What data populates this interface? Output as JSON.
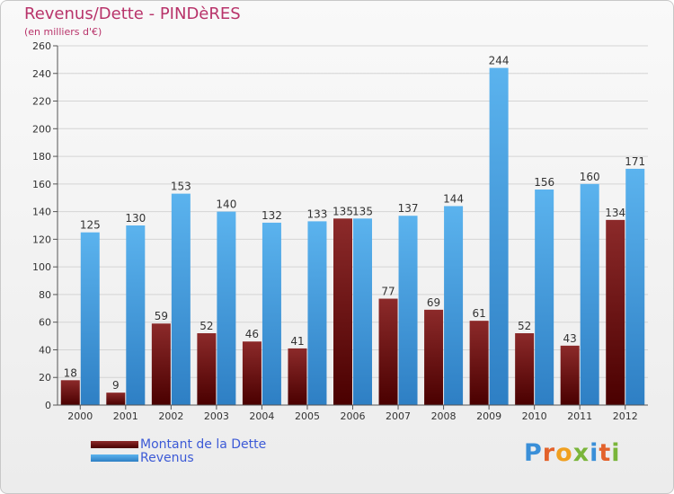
{
  "header": {
    "title": "Revenus/Dette - PINDèRES",
    "subtitle": "(en milliers d'€)"
  },
  "legend": {
    "debt_label": "Montant de la Dette",
    "revenue_label": "Revenus"
  },
  "logo": {
    "text": "Proxiti"
  },
  "colors": {
    "debt": "#6e0f0f",
    "revenue": "#55aee9",
    "title": "#b8336a",
    "legend_text": "#3c5ad6"
  },
  "chart_data": {
    "type": "bar",
    "title": "Revenus/Dette - PINDèRES",
    "subtitle": "(en milliers d'€)",
    "xlabel": "",
    "ylabel": "",
    "ylim": [
      0,
      260
    ],
    "yticks": [
      0,
      20,
      40,
      60,
      80,
      100,
      120,
      140,
      160,
      180,
      200,
      220,
      240,
      260
    ],
    "grid": true,
    "categories": [
      "2000",
      "2001",
      "2002",
      "2003",
      "2004",
      "2005",
      "2006",
      "2007",
      "2008",
      "2009",
      "2010",
      "2011",
      "2012"
    ],
    "series": [
      {
        "name": "Montant de la Dette",
        "values": [
          18,
          9,
          59,
          52,
          46,
          41,
          135,
          77,
          69,
          61,
          52,
          43,
          134
        ]
      },
      {
        "name": "Revenus",
        "values": [
          125,
          130,
          153,
          140,
          132,
          133,
          135,
          137,
          144,
          244,
          156,
          160,
          171
        ]
      }
    ]
  }
}
